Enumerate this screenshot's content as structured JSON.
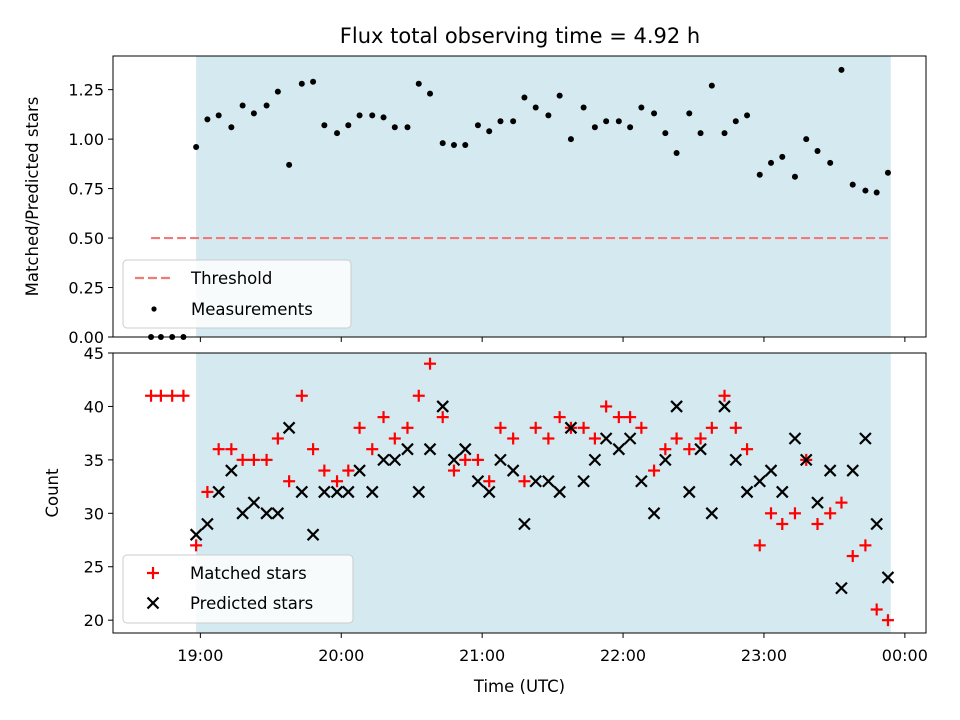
{
  "colors": {
    "band": "#d4eaf0",
    "threshold": "#f07a7a",
    "measurement": "#000000",
    "matched": "#ff0000",
    "predicted": "#000000"
  },
  "chart_data": [
    {
      "type": "scatter",
      "title": "Flux total observing time = 4.92 h",
      "xlabel": "",
      "ylabel": "Matched/Predicted stars",
      "ylim": [
        0,
        1.42
      ],
      "xlim": [
        18.38,
        24.15
      ],
      "yticks": [
        "0.00",
        "0.25",
        "0.50",
        "0.75",
        "1.00",
        "1.25"
      ],
      "ytick_values": [
        0,
        0.25,
        0.5,
        0.75,
        1.0,
        1.25
      ],
      "shaded_interval": [
        18.97,
        23.9
      ],
      "threshold": {
        "name": "Threshold",
        "y": 0.5,
        "x_range": [
          18.65,
          23.9
        ],
        "style": "dashed"
      },
      "legend": [
        "Threshold",
        "Measurements"
      ],
      "legend_position": "lower-left",
      "series": [
        {
          "name": "Measurements",
          "x": [
            18.65,
            18.72,
            18.8,
            18.88,
            18.97,
            19.05,
            19.13,
            19.22,
            19.3,
            19.38,
            19.47,
            19.55,
            19.63,
            19.72,
            19.8,
            19.88,
            19.97,
            20.05,
            20.13,
            20.22,
            20.3,
            20.38,
            20.47,
            20.55,
            20.63,
            20.72,
            20.8,
            20.88,
            20.97,
            21.05,
            21.13,
            21.22,
            21.3,
            21.38,
            21.47,
            21.55,
            21.63,
            21.72,
            21.8,
            21.88,
            21.97,
            22.05,
            22.13,
            22.22,
            22.3,
            22.38,
            22.47,
            22.55,
            22.63,
            22.72,
            22.8,
            22.88,
            22.97,
            23.05,
            23.13,
            23.22,
            23.3,
            23.38,
            23.47,
            23.55,
            23.63,
            23.72,
            23.8,
            23.88
          ],
          "y": [
            0,
            0,
            0,
            0,
            0.96,
            1.1,
            1.12,
            1.06,
            1.17,
            1.13,
            1.17,
            1.24,
            0.87,
            1.28,
            1.29,
            1.07,
            1.03,
            1.07,
            1.12,
            1.12,
            1.11,
            1.06,
            1.06,
            1.28,
            1.23,
            0.98,
            0.97,
            0.97,
            1.07,
            1.04,
            1.09,
            1.09,
            1.21,
            1.16,
            1.12,
            1.22,
            1.0,
            1.16,
            1.06,
            1.09,
            1.09,
            1.06,
            1.16,
            1.13,
            1.03,
            0.93,
            1.13,
            1.03,
            1.27,
            1.03,
            1.09,
            1.12,
            0.82,
            0.88,
            0.91,
            0.81,
            1.0,
            0.94,
            0.88,
            1.35,
            0.77,
            0.74,
            0.73,
            0.83
          ]
        }
      ]
    },
    {
      "type": "scatter",
      "title": "",
      "xlabel": "Time (UTC)",
      "ylabel": "Count",
      "ylim": [
        18.8,
        45
      ],
      "xlim": [
        18.38,
        24.15
      ],
      "yticks": [
        "20",
        "25",
        "30",
        "35",
        "40",
        "45"
      ],
      "ytick_values": [
        20,
        25,
        30,
        35,
        40,
        45
      ],
      "xticks": [
        "19:00",
        "20:00",
        "21:00",
        "22:00",
        "23:00",
        "00:00"
      ],
      "xtick_values": [
        19,
        20,
        21,
        22,
        23,
        24
      ],
      "shaded_interval": [
        18.97,
        23.9
      ],
      "legend": [
        "Matched stars",
        "Predicted stars"
      ],
      "legend_position": "lower-left",
      "series": [
        {
          "name": "Matched stars",
          "marker": "+",
          "x": [
            18.65,
            18.72,
            18.8,
            18.88,
            18.97,
            19.05,
            19.13,
            19.22,
            19.3,
            19.38,
            19.47,
            19.55,
            19.63,
            19.72,
            19.8,
            19.88,
            19.97,
            20.05,
            20.13,
            20.22,
            20.3,
            20.38,
            20.47,
            20.55,
            20.63,
            20.72,
            20.8,
            20.88,
            20.97,
            21.05,
            21.13,
            21.22,
            21.3,
            21.38,
            21.47,
            21.55,
            21.63,
            21.72,
            21.8,
            21.88,
            21.97,
            22.05,
            22.13,
            22.22,
            22.3,
            22.38,
            22.47,
            22.55,
            22.63,
            22.72,
            22.8,
            22.88,
            22.97,
            23.05,
            23.13,
            23.22,
            23.3,
            23.38,
            23.47,
            23.55,
            23.63,
            23.72,
            23.8,
            23.88
          ],
          "y": [
            41,
            41,
            41,
            41,
            27,
            32,
            36,
            36,
            35,
            35,
            35,
            37,
            33,
            41,
            36,
            34,
            33,
            34,
            38,
            36,
            39,
            37,
            38,
            41,
            44,
            39,
            34,
            35,
            35,
            33,
            38,
            37,
            33,
            38,
            37,
            39,
            38,
            38,
            37,
            40,
            39,
            39,
            38,
            34,
            36,
            37,
            36,
            37,
            38,
            41,
            38,
            36,
            27,
            30,
            29,
            30,
            35,
            29,
            30,
            31,
            26,
            27,
            21,
            20
          ]
        },
        {
          "name": "Predicted stars",
          "marker": "x",
          "x": [
            18.97,
            19.05,
            19.13,
            19.22,
            19.3,
            19.38,
            19.47,
            19.55,
            19.63,
            19.72,
            19.8,
            19.88,
            19.97,
            20.05,
            20.13,
            20.22,
            20.3,
            20.38,
            20.47,
            20.55,
            20.63,
            20.72,
            20.8,
            20.88,
            20.97,
            21.05,
            21.13,
            21.22,
            21.3,
            21.38,
            21.47,
            21.55,
            21.63,
            21.72,
            21.8,
            21.88,
            21.97,
            22.05,
            22.13,
            22.22,
            22.3,
            22.38,
            22.47,
            22.55,
            22.63,
            22.72,
            22.8,
            22.88,
            22.97,
            23.05,
            23.13,
            23.22,
            23.3,
            23.38,
            23.47,
            23.55,
            23.63,
            23.72,
            23.8,
            23.88
          ],
          "y": [
            28,
            29,
            32,
            34,
            30,
            31,
            30,
            30,
            38,
            32,
            28,
            32,
            32,
            32,
            34,
            32,
            35,
            35,
            36,
            32,
            36,
            40,
            35,
            36,
            33,
            32,
            35,
            34,
            29,
            33,
            33,
            32,
            38,
            33,
            35,
            37,
            36,
            37,
            33,
            30,
            35,
            40,
            32,
            36,
            30,
            40,
            35,
            32,
            33,
            34,
            32,
            37,
            35,
            31,
            34,
            23,
            34,
            37,
            29,
            24
          ]
        }
      ]
    }
  ]
}
